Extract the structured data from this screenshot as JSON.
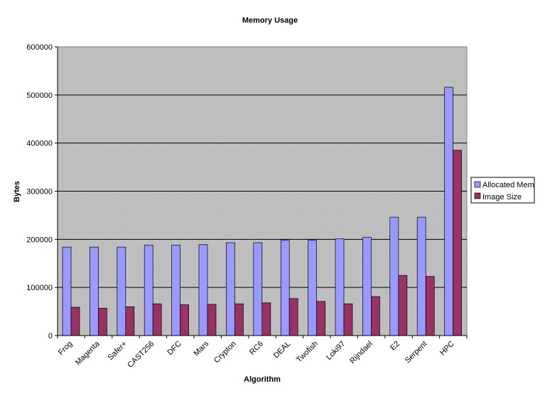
{
  "chart_data": {
    "type": "bar",
    "title": "Memory Usage",
    "xlabel": "Algorithm",
    "ylabel": "Bytes",
    "ylim": [
      0,
      600000
    ],
    "yticks": [
      0,
      100000,
      200000,
      300000,
      400000,
      500000,
      600000
    ],
    "grid": true,
    "legend_position": "right",
    "categories": [
      "Frog",
      "Magenta",
      "Safer+",
      "CAST256",
      "DFC",
      "Mars",
      "Crypton",
      "RC6",
      "DEAL",
      "Twofish",
      "Loki97",
      "Rijndael",
      "E2",
      "Serpent",
      "HPC"
    ],
    "series": [
      {
        "name": "Allocated Mem",
        "color": "#9999ff",
        "values": [
          184000,
          184000,
          184000,
          188000,
          188000,
          189000,
          193000,
          193000,
          198000,
          198000,
          201000,
          204000,
          246000,
          246000,
          516000
        ]
      },
      {
        "name": "Image Size",
        "color": "#993366",
        "values": [
          59000,
          57000,
          60000,
          66000,
          64000,
          65000,
          66000,
          68000,
          77000,
          71000,
          66000,
          81000,
          125000,
          123000,
          385000
        ]
      }
    ]
  }
}
